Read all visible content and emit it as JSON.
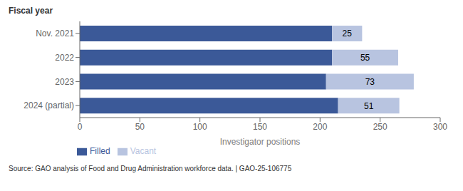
{
  "chart_data": {
    "type": "bar",
    "orientation": "horizontal",
    "stacked": true,
    "categories": [
      "Nov. 2021",
      "2022",
      "2023",
      "2024 (partial)"
    ],
    "series": [
      {
        "name": "Filled",
        "color": "#3B5998",
        "values": [
          210,
          210,
          205,
          215
        ]
      },
      {
        "name": "Vacant",
        "color": "#B8C4E0",
        "values": [
          25,
          55,
          73,
          51
        ],
        "data_labels": true
      }
    ],
    "xlabel": "Investigator positions",
    "ylabel": "Fiscal year",
    "xlim": [
      0,
      300
    ],
    "xticks": [
      0,
      50,
      100,
      150,
      200,
      250,
      300
    ],
    "grid": false,
    "legend": "bottom",
    "annotations": [
      "Source: GAO analysis of Food and Drug Administration workforce data.  |  GAO-25-106775"
    ]
  }
}
